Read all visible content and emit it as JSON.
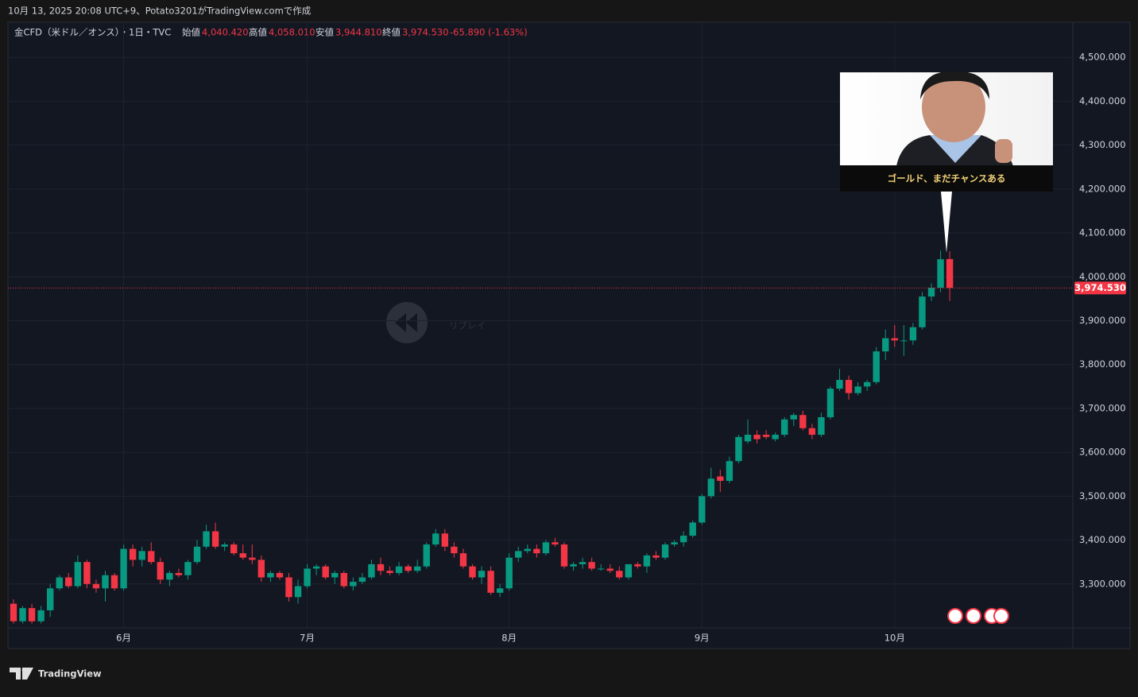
{
  "header": {
    "caption": "10月 13, 2025 20:08 UTC+9、Potato3201がTradingView.comで作成"
  },
  "chart_data": {
    "type": "candlestick",
    "symbol": "金CFD（米ドル／オンス）・1日・TVC",
    "ohlc_labels": [
      {
        "name": "始値",
        "value": "4,040.420"
      },
      {
        "name": "高値",
        "value": "4,058.010"
      },
      {
        "name": "安値",
        "value": "3,944.810"
      },
      {
        "name": "終値",
        "value": "3,974.530"
      }
    ],
    "change": "-65.890 (-1.63%)",
    "watermark": "リプレイ",
    "callout": "ゴールド、まだチャンスある",
    "last_price_label": "3,974.530",
    "up_color": "#089981",
    "down_color": "#f23645",
    "categories": [
      null,
      null,
      null,
      null,
      null,
      null,
      null,
      null,
      null,
      null,
      null,
      null,
      "6月",
      null,
      null,
      null,
      null,
      null,
      null,
      null,
      null,
      null,
      null,
      null,
      null,
      null,
      null,
      null,
      null,
      null,
      null,
      null,
      "7月",
      null,
      null,
      null,
      null,
      null,
      null,
      null,
      null,
      null,
      null,
      null,
      null,
      null,
      null,
      null,
      null,
      null,
      null,
      null,
      null,
      null,
      "8月",
      null,
      null,
      null,
      null,
      null,
      null,
      null,
      null,
      null,
      null,
      null,
      null,
      null,
      null,
      null,
      null,
      null,
      null,
      null,
      null,
      "9月",
      null,
      null,
      null,
      null,
      null,
      null,
      null,
      null,
      null,
      null,
      null,
      null,
      null,
      null,
      null,
      null,
      null,
      null,
      null,
      null,
      "10月",
      null,
      null,
      null,
      null,
      null,
      null
    ],
    "open": [
      3255,
      3215,
      3245,
      3215,
      3240,
      3290,
      3315,
      3295,
      3350,
      3300,
      3290,
      3320,
      3290,
      3380,
      3355,
      3375,
      3350,
      3310,
      3325,
      3320,
      3350,
      3385,
      3420,
      3385,
      3390,
      3370,
      3360,
      3355,
      3315,
      3325,
      3315,
      3270,
      3295,
      3335,
      3340,
      3315,
      3325,
      3295,
      3305,
      3315,
      3345,
      3330,
      3325,
      3340,
      3330,
      3340,
      3390,
      3415,
      3385,
      3370,
      3340,
      3315,
      3330,
      3280,
      3290,
      3360,
      3375,
      3380,
      3370,
      3395,
      3390,
      3340,
      3345,
      3350,
      3335,
      3335,
      3330,
      3315,
      3345,
      3340,
      3365,
      3360,
      3390,
      3395,
      3410,
      3440,
      3500,
      3545,
      3535,
      3580,
      3625,
      3640,
      3640,
      3630,
      3640,
      3675,
      3685,
      3655,
      3640,
      3680,
      3745,
      3765,
      3735,
      3750,
      3760,
      3830,
      3860,
      3855,
      3855,
      3885,
      3955,
      3975,
      4040.42
    ],
    "high": [
      3265,
      3250,
      3255,
      3250,
      3300,
      3320,
      3325,
      3365,
      3355,
      3310,
      3330,
      3325,
      3390,
      3390,
      3385,
      3395,
      3360,
      3330,
      3335,
      3355,
      3400,
      3435,
      3440,
      3395,
      3395,
      3390,
      3390,
      3365,
      3330,
      3330,
      3325,
      3310,
      3345,
      3345,
      3345,
      3330,
      3330,
      3315,
      3325,
      3355,
      3360,
      3340,
      3350,
      3345,
      3355,
      3395,
      3425,
      3425,
      3395,
      3380,
      3345,
      3340,
      3340,
      3300,
      3370,
      3385,
      3390,
      3390,
      3400,
      3405,
      3395,
      3350,
      3360,
      3360,
      3345,
      3345,
      3340,
      3345,
      3350,
      3370,
      3375,
      3395,
      3400,
      3420,
      3445,
      3505,
      3565,
      3560,
      3590,
      3640,
      3675,
      3650,
      3650,
      3645,
      3680,
      3690,
      3695,
      3665,
      3690,
      3750,
      3790,
      3775,
      3760,
      3765,
      3840,
      3880,
      3890,
      3890,
      3895,
      3965,
      3985,
      4060,
      4058.01
    ],
    "low": [
      3210,
      3210,
      3210,
      3210,
      3225,
      3285,
      3290,
      3290,
      3290,
      3280,
      3260,
      3285,
      3285,
      3340,
      3340,
      3345,
      3300,
      3295,
      3315,
      3310,
      3345,
      3380,
      3380,
      3375,
      3365,
      3355,
      3345,
      3305,
      3305,
      3310,
      3260,
      3255,
      3290,
      3320,
      3310,
      3300,
      3290,
      3285,
      3300,
      3310,
      3320,
      3320,
      3320,
      3325,
      3325,
      3335,
      3385,
      3375,
      3360,
      3335,
      3310,
      3300,
      3275,
      3270,
      3285,
      3350,
      3370,
      3360,
      3365,
      3385,
      3335,
      3330,
      3335,
      3330,
      3330,
      3325,
      3310,
      3310,
      3335,
      3325,
      3355,
      3355,
      3385,
      3385,
      3405,
      3435,
      3495,
      3510,
      3530,
      3575,
      3620,
      3620,
      3630,
      3625,
      3635,
      3660,
      3650,
      3630,
      3635,
      3675,
      3740,
      3720,
      3730,
      3740,
      3755,
      3810,
      3840,
      3820,
      3845,
      3880,
      3945,
      3965,
      3944.81
    ],
    "close": [
      3215,
      3245,
      3215,
      3240,
      3290,
      3315,
      3295,
      3350,
      3300,
      3290,
      3320,
      3290,
      3380,
      3355,
      3375,
      3350,
      3310,
      3325,
      3320,
      3350,
      3385,
      3420,
      3385,
      3390,
      3370,
      3360,
      3355,
      3315,
      3325,
      3315,
      3270,
      3295,
      3335,
      3340,
      3315,
      3325,
      3295,
      3305,
      3315,
      3345,
      3330,
      3325,
      3340,
      3330,
      3340,
      3390,
      3415,
      3385,
      3370,
      3340,
      3315,
      3330,
      3280,
      3290,
      3360,
      3375,
      3380,
      3370,
      3395,
      3390,
      3340,
      3345,
      3350,
      3335,
      3335,
      3330,
      3315,
      3345,
      3340,
      3365,
      3360,
      3390,
      3395,
      3410,
      3440,
      3500,
      3540,
      3535,
      3580,
      3635,
      3640,
      3630,
      3635,
      3640,
      3675,
      3685,
      3655,
      3640,
      3680,
      3745,
      3765,
      3735,
      3750,
      3760,
      3830,
      3860,
      3855,
      3855,
      3885,
      3955,
      3975,
      4040,
      3974.53
    ],
    "ylim": [
      3200,
      4580
    ],
    "yticks": [
      {
        "value": 3300,
        "label": "3,300.000"
      },
      {
        "value": 3400,
        "label": "3,400.000"
      },
      {
        "value": 3500,
        "label": "3,500.000"
      },
      {
        "value": 3600,
        "label": "3,600.000"
      },
      {
        "value": 3700,
        "label": "3,700.000"
      },
      {
        "value": 3800,
        "label": "3,800.000"
      },
      {
        "value": 3900,
        "label": "3,900.000"
      },
      {
        "value": 4000,
        "label": "4,000.000"
      },
      {
        "value": 4100,
        "label": "4,100.000"
      },
      {
        "value": 4200,
        "label": "4,200.000"
      },
      {
        "value": 4300,
        "label": "4,300.000"
      },
      {
        "value": 4400,
        "label": "4,400.000"
      },
      {
        "value": 4500,
        "label": "4,500.000"
      }
    ],
    "grid": true
  },
  "footer": {
    "brand": "TradingView"
  }
}
